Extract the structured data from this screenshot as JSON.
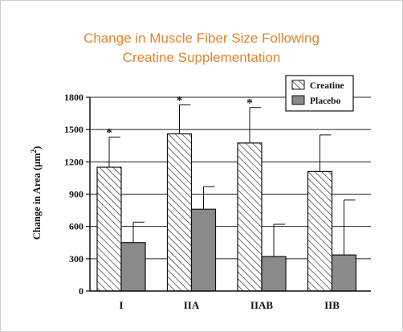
{
  "chart_data": {
    "type": "bar",
    "title_line1": "Change in Muscle Fiber Size Following",
    "title_line2": "Creatine Supplementation",
    "ylabel_prefix": "Change in Area (",
    "ylabel_unit": "μm",
    "ylabel_exp": "2",
    "ylabel_suffix": ")",
    "xlabel": "",
    "categories": [
      "I",
      "IIA",
      "IIAB",
      "IIB"
    ],
    "ylim": [
      0,
      1800
    ],
    "yticks": [
      0,
      300,
      600,
      900,
      1200,
      1500,
      1800
    ],
    "grid": true,
    "legend_position": "top-right",
    "series": [
      {
        "name": "Creatine",
        "values": [
          1150,
          1460,
          1375,
          1110
        ],
        "error": [
          280,
          270,
          330,
          340
        ],
        "fill": "hatched",
        "color": "#ffffff"
      },
      {
        "name": "Placebo",
        "values": [
          450,
          760,
          320,
          335
        ],
        "error": [
          190,
          210,
          300,
          510
        ],
        "fill": "solid",
        "color": "#8a8a8a"
      }
    ],
    "significance": {
      "marker": "*",
      "categories": [
        "I",
        "IIA",
        "IIAB"
      ]
    }
  }
}
